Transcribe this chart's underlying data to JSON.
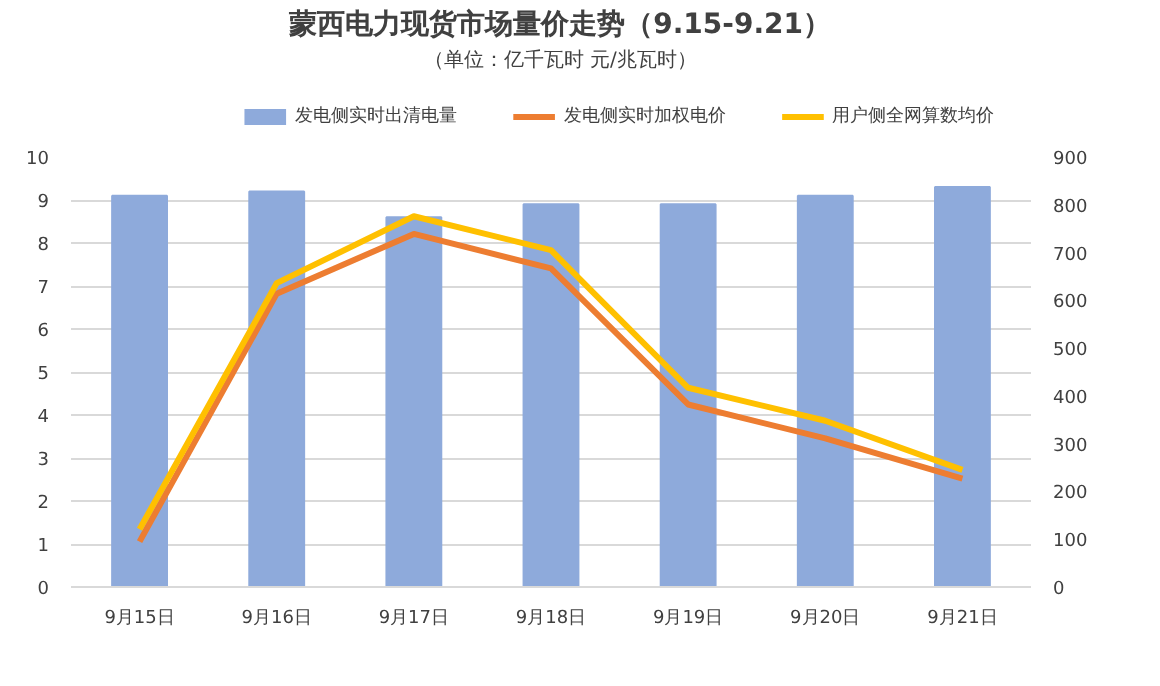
{
  "chart_data": {
    "type": "bar",
    "title": "蒙西电力现货市场量价走势（9.15-9.21）",
    "subtitle": "（单位：亿千瓦时 元/兆瓦时）",
    "categories": [
      "9月15日",
      "9月16日",
      "9月17日",
      "9月18日",
      "9月19日",
      "9月20日",
      "9月21日"
    ],
    "series": [
      {
        "name": "发电侧实时出清电量",
        "color": "#8eaadb",
        "values": [
          9.1,
          9.2,
          8.6,
          8.9,
          8.9,
          9.1,
          9.3
        ]
      },
      {
        "name": "发电侧实时加权电价",
        "type": "line",
        "axis": "y2",
        "color": "#ed7d31",
        "values": [
          95,
          614,
          739,
          667,
          382,
          311,
          227
        ]
      },
      {
        "name": "用户侧全网算数均价",
        "type": "line",
        "axis": "y2",
        "color": "#ffc000",
        "values": [
          121,
          636,
          776,
          705,
          417,
          348,
          245
        ]
      }
    ],
    "ylim": [
      0,
      10
    ],
    "yticks": [
      0,
      1,
      2,
      3,
      4,
      5,
      6,
      7,
      8,
      9,
      10
    ],
    "y2lim": [
      0,
      900
    ],
    "y2ticks": [
      0,
      100,
      200,
      300,
      400,
      500,
      600,
      700,
      800,
      900
    ],
    "grid": "y",
    "legend": "top"
  }
}
